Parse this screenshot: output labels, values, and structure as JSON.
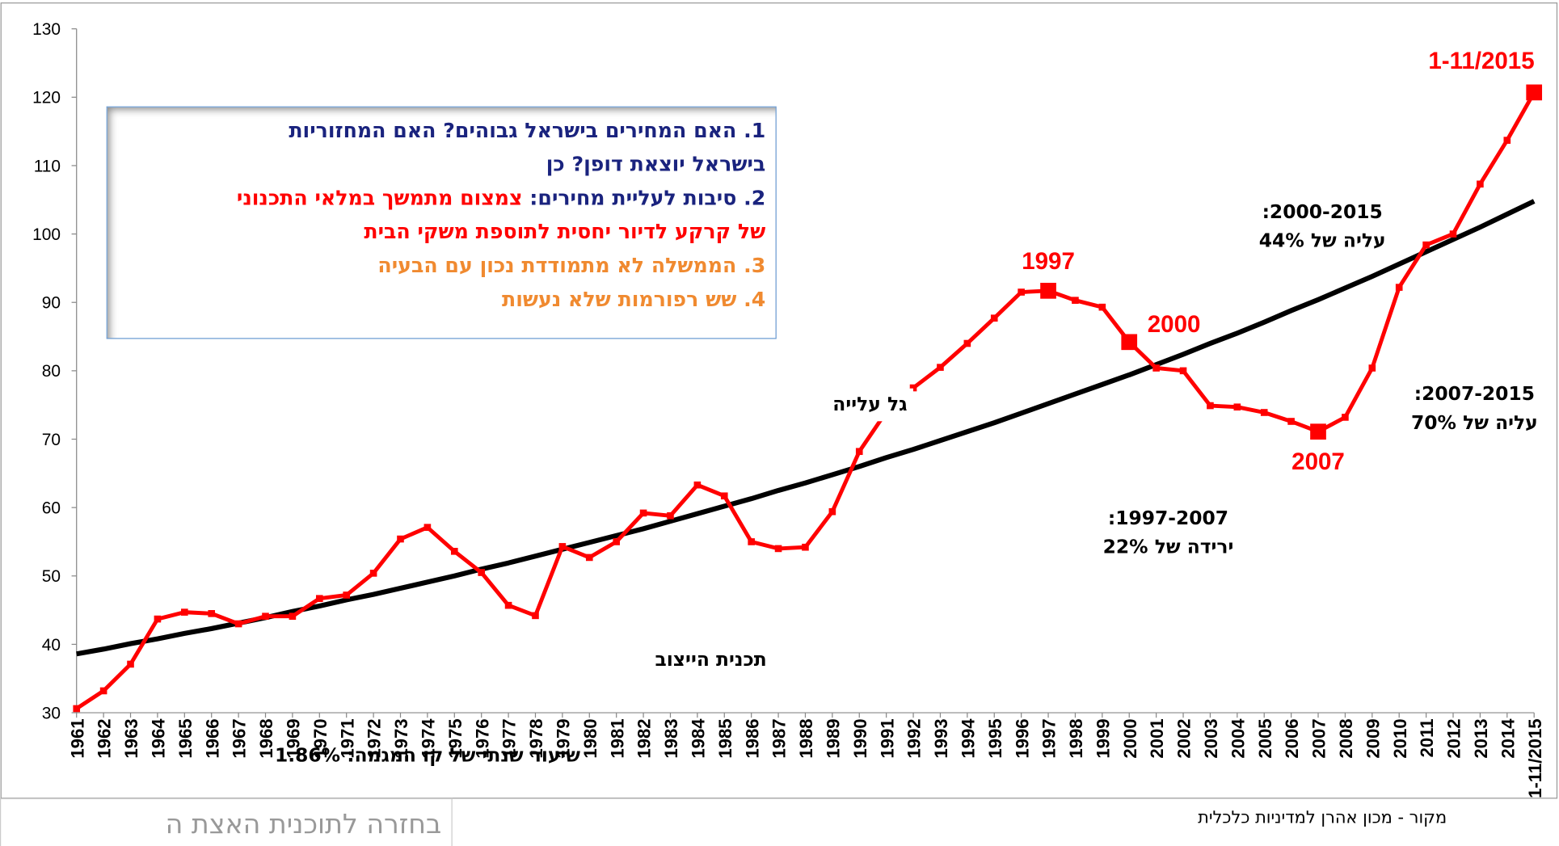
{
  "chart_data": {
    "type": "line",
    "categories": [
      "1961",
      "1962",
      "1963",
      "1964",
      "1965",
      "1966",
      "1967",
      "1968",
      "1969",
      "1970",
      "1971",
      "1972",
      "1973",
      "1974",
      "1975",
      "1976",
      "1977",
      "1978",
      "1979",
      "1980",
      "1981",
      "1982",
      "1983",
      "1984",
      "1985",
      "1986",
      "1987",
      "1988",
      "1989",
      "1990",
      "1991",
      "1992",
      "1993",
      "1994",
      "1995",
      "1996",
      "1997",
      "1998",
      "1999",
      "2000",
      "2001",
      "2002",
      "2003",
      "2004",
      "2005",
      "2006",
      "2007",
      "2008",
      "2009",
      "2010",
      "2011",
      "2012",
      "2013",
      "2014",
      "1-11/2015"
    ],
    "series": [
      {
        "color": "#ff0000",
        "values": [
          30.6,
          33.2,
          37.1,
          43.7,
          44.7,
          44.5,
          43.0,
          44.1,
          44.1,
          46.7,
          47.2,
          50.4,
          55.4,
          57.1,
          53.6,
          50.5,
          45.7,
          44.2,
          54.3,
          52.7,
          55.0,
          59.2,
          58.8,
          63.3,
          61.7,
          55.0,
          54.0,
          54.2,
          59.4,
          68.2,
          74.0,
          77.5,
          80.5,
          84.0,
          87.7,
          91.5,
          91.7,
          90.3,
          89.3,
          84.2,
          80.4,
          80.0,
          74.9,
          74.7,
          73.9,
          72.6,
          71.1,
          73.2,
          80.4,
          92.2,
          98.4,
          100.0,
          107.3,
          113.7,
          120.7
        ]
      },
      {
        "color": "#000000",
        "values": [
          38.6,
          39.3,
          40.1,
          40.8,
          41.6,
          42.3,
          43.1,
          43.9,
          44.8,
          45.6,
          46.5,
          47.3,
          48.2,
          49.1,
          50.0,
          51.0,
          51.9,
          52.9,
          53.9,
          54.9,
          55.9,
          56.9,
          58.0,
          59.1,
          60.2,
          61.3,
          62.5,
          63.6,
          64.8,
          66.0,
          67.3,
          68.5,
          69.8,
          71.1,
          72.4,
          73.8,
          75.2,
          76.6,
          78.0,
          79.4,
          80.9,
          82.4,
          84.0,
          85.5,
          87.1,
          88.8,
          90.4,
          92.1,
          93.8,
          95.6,
          97.4,
          99.2,
          101.0,
          102.9,
          104.8
        ]
      }
    ],
    "ylim": [
      30,
      130
    ],
    "yticks": [
      30,
      40,
      50,
      60,
      70,
      80,
      90,
      100,
      110,
      120,
      130
    ],
    "point_labels": [
      {
        "text": "1997"
      },
      {
        "text": "2000"
      },
      {
        "text": "2007"
      },
      {
        "text": "1-11/2015"
      }
    ],
    "annotations": {
      "wave": "גל עלייה",
      "stabilization": "תכנית הייצוב",
      "period_2000_2015": [
        "2000-2015:",
        "עליה של 44%"
      ],
      "period_2007_2015": [
        "2007-2015:",
        "עליה של 70%"
      ],
      "period_1997_2007": [
        "1997-2007:",
        "ירידה של 22%"
      ],
      "trend_rate": "שיעור שנתי של קו המגמה: 1.86%"
    },
    "text_box": {
      "line1": "1. האם המחירים בישראל גבוהים? האם המחזוריות",
      "line2": "בישראל יוצאת דופן? כן",
      "line3a": "2. סיבות לעליית מחירים: ",
      "line3b": "צמצום מתמשך במלאי התכנוני",
      "line4": "של קרקע לדיור יחסית לתוספת משקי הבית",
      "line5": "3. הממשלה לא מתמודדת נכון עם הבעיה",
      "line6": "4. שש רפורמות שלא נעשות"
    },
    "source": "מקור - מכון אהרן למדיניות כלכלית"
  },
  "footer": {
    "back_link": "בחזרה לתוכנית האצת ה"
  }
}
